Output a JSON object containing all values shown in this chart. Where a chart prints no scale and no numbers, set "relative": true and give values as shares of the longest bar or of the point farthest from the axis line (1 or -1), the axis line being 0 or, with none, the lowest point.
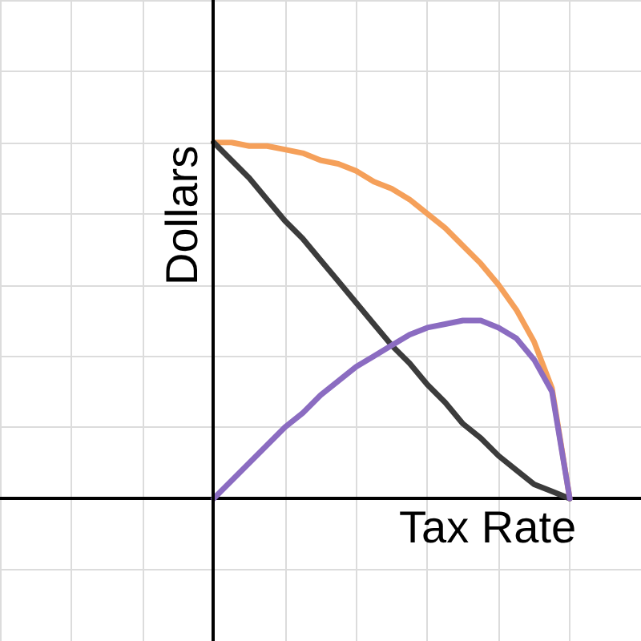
{
  "chart_data": {
    "type": "line",
    "relative": true,
    "xlabel": "Tax Rate",
    "ylabel": "Dollars",
    "grid": true,
    "marker": "none",
    "line_style": "solid",
    "categories": [
      null,
      null,
      null,
      null,
      null,
      null,
      null,
      null,
      null,
      null,
      null,
      null,
      null,
      null,
      null,
      null,
      null,
      null,
      null,
      null,
      null
    ],
    "series": [
      {
        "color": "#f5a05a",
        "values": [
          1,
          1,
          0.99,
          0.99,
          0.98,
          0.97,
          0.95,
          0.94,
          0.92,
          0.89,
          0.87,
          0.84,
          0.8,
          0.76,
          0.71,
          0.66,
          0.6,
          0.53,
          0.44,
          0.31,
          0
        ]
      },
      {
        "color": "#3c3c3c",
        "values": [
          1,
          0.95,
          0.9,
          0.84,
          0.78,
          0.73,
          0.67,
          0.61,
          0.55,
          0.49,
          0.43,
          0.38,
          0.32,
          0.27,
          0.21,
          0.17,
          0.12,
          0.08,
          0.04,
          0.02,
          0
        ]
      },
      {
        "color": "#8b6cc1",
        "values": [
          0,
          0.05,
          0.1,
          0.15,
          0.2,
          0.24,
          0.29,
          0.33,
          0.37,
          0.4,
          0.43,
          0.46,
          0.48,
          0.49,
          0.5,
          0.5,
          0.48,
          0.45,
          0.39,
          0.3,
          0
        ]
      }
    ]
  }
}
